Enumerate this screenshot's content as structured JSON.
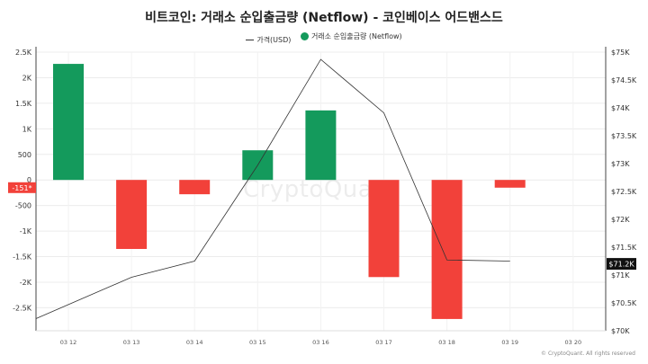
{
  "chart_data": {
    "type": "bar",
    "title": "비트코인: 거래소 순입출금량 (Netflow) - 코인베이스 어드밴스드",
    "legend": [
      {
        "label": "가격(USD)",
        "type": "line",
        "color": "#333333"
      },
      {
        "label": "거래소 순입출금량 (Netflow)",
        "type": "dot",
        "color": "#149a5c"
      }
    ],
    "categories": [
      "03 12",
      "03 13",
      "03 14",
      "03 15",
      "03 16",
      "03 17",
      "03 18",
      "03 19",
      "03 20"
    ],
    "series": [
      {
        "name": "거래소 순입출금량 (Netflow)",
        "axis": "left",
        "values": [
          2270,
          -1350,
          -280,
          580,
          1360,
          -1900,
          -2720,
          -151,
          null
        ]
      },
      {
        "name": "가격(USD)",
        "axis": "right",
        "values": [
          70470,
          70960,
          71250,
          72970,
          74870,
          73910,
          71270,
          71250,
          null
        ]
      }
    ],
    "left_axis": {
      "ylim": [
        -2950,
        2500
      ],
      "ticks": [
        2500,
        2000,
        1500,
        1000,
        500,
        0,
        -500,
        -1000,
        -1500,
        -2000,
        -2500
      ],
      "tick_labels": [
        "2.5K",
        "2K",
        "1.5K",
        "1K",
        "500",
        "0",
        "-500",
        "-1K",
        "-1.5K",
        "-2K",
        "-2.5K"
      ]
    },
    "right_axis": {
      "ylim": [
        70000,
        75000
      ],
      "ticks": [
        75000,
        74500,
        74000,
        73500,
        73000,
        72500,
        72000,
        71500,
        71000,
        70500,
        70000
      ],
      "tick_labels": [
        "$75K",
        "$74.5K",
        "$74K",
        "$73.5K",
        "$73K",
        "$72.5K",
        "$72K",
        "$71.5K",
        "$71K",
        "$70.5K",
        "$70K"
      ]
    },
    "current_value_labels": {
      "left": "-151*",
      "right": "$71.2K",
      "left_value": -151,
      "right_value": 71200
    },
    "colors": {
      "positive": "#149a5c",
      "negative": "#f2413a",
      "price_line": "#333333"
    },
    "watermark": "CryptoQuant",
    "copyright": "© CryptoQuant. All rights reserved"
  }
}
